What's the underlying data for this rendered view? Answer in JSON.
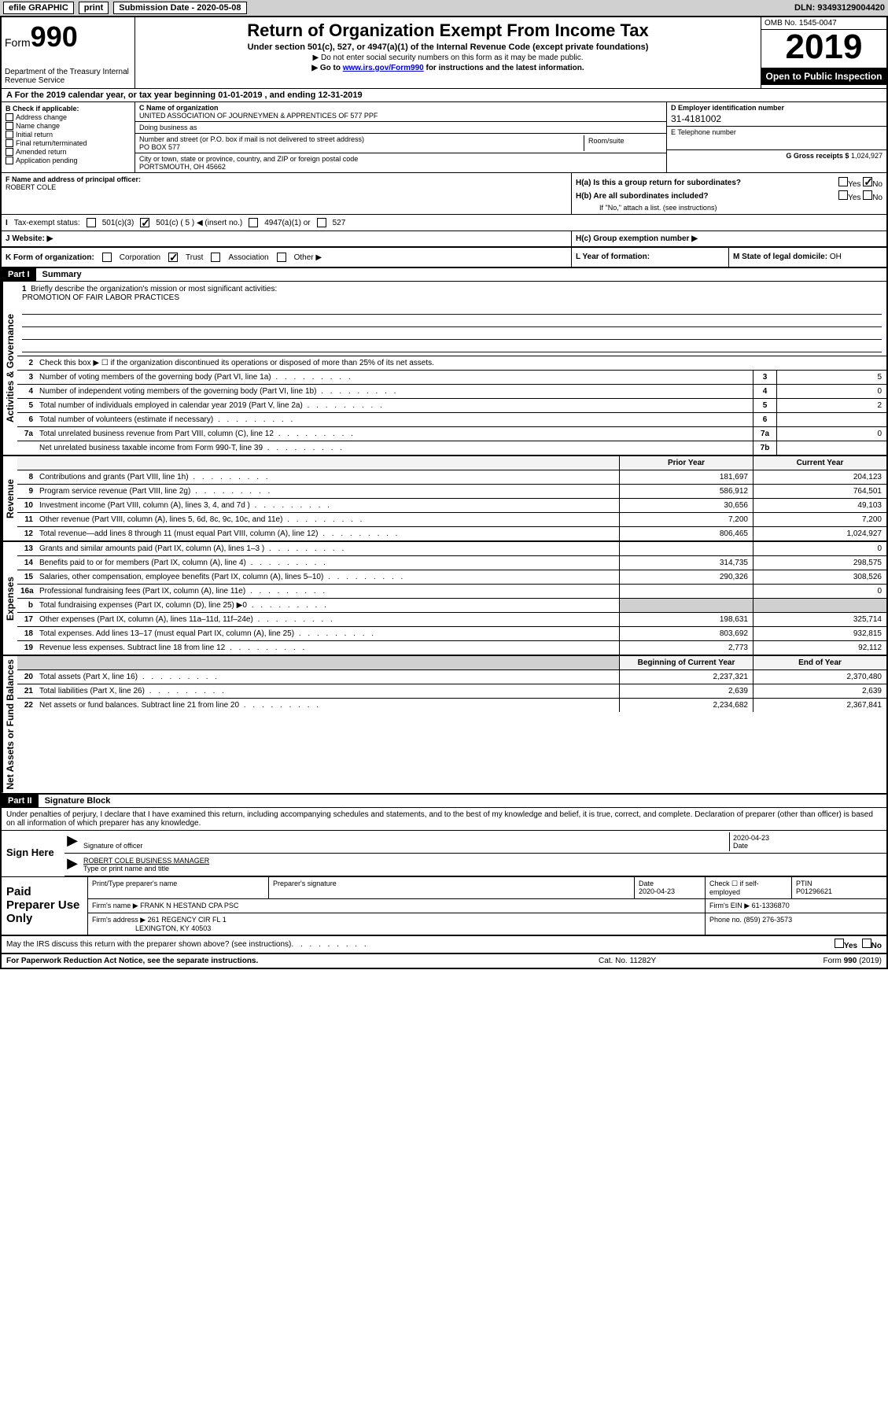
{
  "topbar": {
    "efile": "efile GRAPHIC",
    "print": "print",
    "submission": "Submission Date - 2020-05-08",
    "dln": "DLN: 93493129004420"
  },
  "header": {
    "form_prefix": "Form",
    "form_number": "990",
    "dept": "Department of the Treasury Internal Revenue Service",
    "title": "Return of Organization Exempt From Income Tax",
    "subtitle": "Under section 501(c), 527, or 4947(a)(1) of the Internal Revenue Code (except private foundations)",
    "note1": "▶ Do not enter social security numbers on this form as it may be made public.",
    "note2_pre": "▶ Go to ",
    "note2_link": "www.irs.gov/Form990",
    "note2_post": " for instructions and the latest information.",
    "omb": "OMB No. 1545-0047",
    "year": "2019",
    "inspect": "Open to Public Inspection"
  },
  "period": "For the 2019 calendar year, or tax year beginning 01-01-2019    , and ending 12-31-2019",
  "section_b": {
    "header": "B Check if applicable:",
    "items": [
      "Address change",
      "Name change",
      "Initial return",
      "Final return/terminated",
      "Amended return",
      "Application pending"
    ]
  },
  "section_c": {
    "name_label": "C Name of organization",
    "name": "UNITED ASSOCIATION OF JOURNEYMEN & APPRENTICES OF 577 PPF",
    "dba_label": "Doing business as",
    "addr_label": "Number and street (or P.O. box if mail is not delivered to street address)",
    "addr": "PO BOX 577",
    "room_label": "Room/suite",
    "city_label": "City or town, state or province, country, and ZIP or foreign postal code",
    "city": "PORTSMOUTH, OH  45662"
  },
  "section_d": {
    "ein_label": "D Employer identification number",
    "ein": "31-4181002",
    "phone_label": "E Telephone number",
    "gross_label": "G Gross receipts $",
    "gross": "1,024,927"
  },
  "section_f": {
    "label": "F  Name and address of principal officer:",
    "name": "ROBERT COLE"
  },
  "section_h": {
    "ha": "H(a)  Is this a group return for subordinates?",
    "hb": "H(b)  Are all subordinates included?",
    "hb_note": "If \"No,\" attach a list. (see instructions)",
    "hc": "H(c)  Group exemption number ▶",
    "yes": "Yes",
    "no": "No"
  },
  "tax_status": {
    "label": "Tax-exempt status:",
    "opt1": "501(c)(3)",
    "opt2": "501(c) ( 5 ) ◀ (insert no.)",
    "opt3": "4947(a)(1) or",
    "opt4": "527"
  },
  "website": {
    "label": "J    Website: ▶"
  },
  "row_k": {
    "label": "K Form of organization:",
    "corp": "Corporation",
    "trust": "Trust",
    "assoc": "Association",
    "other": "Other ▶",
    "l_label": "L Year of formation:",
    "m_label": "M State of legal domicile:",
    "m_val": "OH"
  },
  "part1": {
    "header": "Part I",
    "title": "Summary"
  },
  "governance": {
    "side": "Activities & Governance",
    "q1": "Briefly describe the organization's mission or most significant activities:",
    "mission": "PROMOTION OF FAIR LABOR PRACTICES",
    "q2": "Check this box ▶ ☐  if the organization discontinued its operations or disposed of more than 25% of its net assets.",
    "rows": [
      {
        "n": "3",
        "t": "Number of voting members of the governing body (Part VI, line 1a)",
        "box": "3",
        "v": "5"
      },
      {
        "n": "4",
        "t": "Number of independent voting members of the governing body (Part VI, line 1b)",
        "box": "4",
        "v": "0"
      },
      {
        "n": "5",
        "t": "Total number of individuals employed in calendar year 2019 (Part V, line 2a)",
        "box": "5",
        "v": "2"
      },
      {
        "n": "6",
        "t": "Total number of volunteers (estimate if necessary)",
        "box": "6",
        "v": ""
      },
      {
        "n": "7a",
        "t": "Total unrelated business revenue from Part VIII, column (C), line 12",
        "box": "7a",
        "v": "0"
      },
      {
        "n": "",
        "t": "Net unrelated business taxable income from Form 990-T, line 39",
        "box": "7b",
        "v": ""
      }
    ]
  },
  "revenue": {
    "side": "Revenue",
    "py_header": "Prior Year",
    "cy_header": "Current Year",
    "rows": [
      {
        "n": "8",
        "t": "Contributions and grants (Part VIII, line 1h)",
        "py": "181,697",
        "cy": "204,123"
      },
      {
        "n": "9",
        "t": "Program service revenue (Part VIII, line 2g)",
        "py": "586,912",
        "cy": "764,501"
      },
      {
        "n": "10",
        "t": "Investment income (Part VIII, column (A), lines 3, 4, and 7d )",
        "py": "30,656",
        "cy": "49,103"
      },
      {
        "n": "11",
        "t": "Other revenue (Part VIII, column (A), lines 5, 6d, 8c, 9c, 10c, and 11e)",
        "py": "7,200",
        "cy": "7,200"
      },
      {
        "n": "12",
        "t": "Total revenue—add lines 8 through 11 (must equal Part VIII, column (A), line 12)",
        "py": "806,465",
        "cy": "1,024,927"
      }
    ]
  },
  "expenses": {
    "side": "Expenses",
    "rows": [
      {
        "n": "13",
        "t": "Grants and similar amounts paid (Part IX, column (A), lines 1–3 )",
        "py": "",
        "cy": "0"
      },
      {
        "n": "14",
        "t": "Benefits paid to or for members (Part IX, column (A), line 4)",
        "py": "314,735",
        "cy": "298,575"
      },
      {
        "n": "15",
        "t": "Salaries, other compensation, employee benefits (Part IX, column (A), lines 5–10)",
        "py": "290,326",
        "cy": "308,526"
      },
      {
        "n": "16a",
        "t": "Professional fundraising fees (Part IX, column (A), line 11e)",
        "py": "",
        "cy": "0"
      },
      {
        "n": "b",
        "t": "Total fundraising expenses (Part IX, column (D), line 25) ▶0",
        "py": "blank",
        "cy": "blank"
      },
      {
        "n": "17",
        "t": "Other expenses (Part IX, column (A), lines 11a–11d, 11f–24e)",
        "py": "198,631",
        "cy": "325,714"
      },
      {
        "n": "18",
        "t": "Total expenses. Add lines 13–17 (must equal Part IX, column (A), line 25)",
        "py": "803,692",
        "cy": "932,815"
      },
      {
        "n": "19",
        "t": "Revenue less expenses. Subtract line 18 from line 12",
        "py": "2,773",
        "cy": "92,112"
      }
    ]
  },
  "netassets": {
    "side": "Net Assets or Fund Balances",
    "by_header": "Beginning of Current Year",
    "ey_header": "End of Year",
    "rows": [
      {
        "n": "20",
        "t": "Total assets (Part X, line 16)",
        "py": "2,237,321",
        "cy": "2,370,480"
      },
      {
        "n": "21",
        "t": "Total liabilities (Part X, line 26)",
        "py": "2,639",
        "cy": "2,639"
      },
      {
        "n": "22",
        "t": "Net assets or fund balances. Subtract line 21 from line 20",
        "py": "2,234,682",
        "cy": "2,367,841"
      }
    ]
  },
  "part2": {
    "header": "Part II",
    "title": "Signature Block"
  },
  "sig": {
    "intro": "Under penalties of perjury, I declare that I have examined this return, including accompanying schedules and statements, and to the best of my knowledge and belief, it is true, correct, and complete. Declaration of preparer (other than officer) is based on all information of which preparer has any knowledge.",
    "sign_here": "Sign Here",
    "sig_officer": "Signature of officer",
    "date": "2020-04-23",
    "date_label": "Date",
    "name": "ROBERT COLE  BUSINESS MANAGER",
    "name_label": "Type or print name and title"
  },
  "paid": {
    "label": "Paid Preparer Use Only",
    "print_label": "Print/Type preparer's name",
    "sig_label": "Preparer's signature",
    "date_label": "Date",
    "date": "2020-04-23",
    "check_label": "Check ☐ if self-employed",
    "ptin_label": "PTIN",
    "ptin": "P01296621",
    "firm_name_label": "Firm's name    ▶",
    "firm_name": "FRANK N HESTAND CPA PSC",
    "firm_ein_label": "Firm's EIN ▶",
    "firm_ein": "61-1336870",
    "firm_addr_label": "Firm's address ▶",
    "firm_addr1": "261 REGENCY CIR FL 1",
    "firm_addr2": "LEXINGTON, KY  40503",
    "phone_label": "Phone no.",
    "phone": "(859) 276-3573"
  },
  "discuss": "May the IRS discuss this return with the preparer shown above? (see instructions)",
  "footer": {
    "left": "For Paperwork Reduction Act Notice, see the separate instructions.",
    "mid": "Cat. No. 11282Y",
    "right_form": "Form",
    "right_num": "990",
    "right_year": "(2019)"
  }
}
